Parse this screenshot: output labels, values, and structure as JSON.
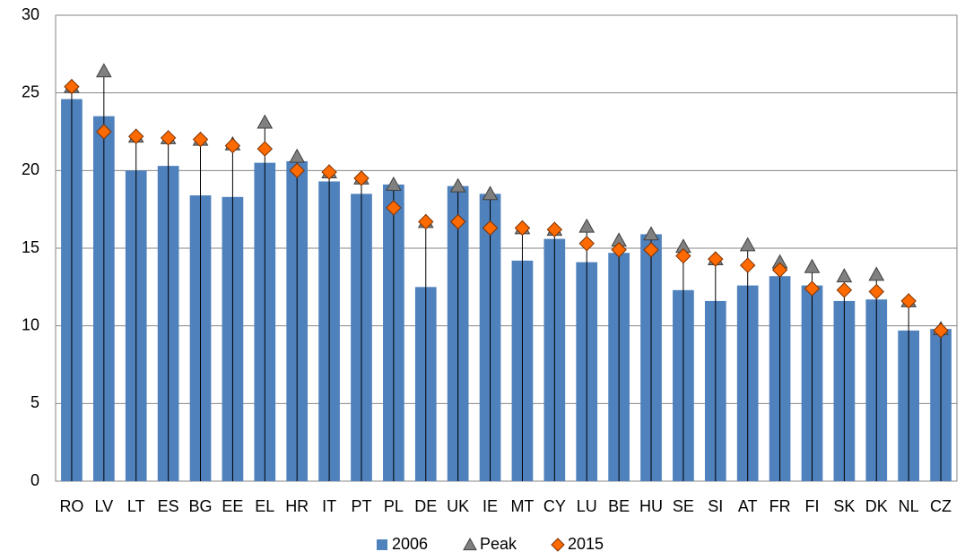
{
  "chart_data": {
    "type": "bar-markers",
    "categories": [
      "RO",
      "LV",
      "LT",
      "ES",
      "BG",
      "EE",
      "EL",
      "HR",
      "IT",
      "PT",
      "PL",
      "DE",
      "UK",
      "IE",
      "MT",
      "CY",
      "LU",
      "BE",
      "HU",
      "SE",
      "SI",
      "AT",
      "FR",
      "FI",
      "SK",
      "DK",
      "NL",
      "CZ"
    ],
    "series": [
      {
        "name": "2006",
        "color": "#4f81bd",
        "marker": "bar",
        "values": [
          24.6,
          23.5,
          20.0,
          20.3,
          18.4,
          18.3,
          20.5,
          20.6,
          19.3,
          18.5,
          19.1,
          12.5,
          19.0,
          18.5,
          14.2,
          15.6,
          14.1,
          14.7,
          15.9,
          12.3,
          11.6,
          12.6,
          13.2,
          12.6,
          11.6,
          11.7,
          9.7,
          9.8
        ]
      },
      {
        "name": "Peak",
        "color": "#808080",
        "marker": "triangle",
        "values": [
          25.4,
          26.4,
          22.2,
          22.1,
          22.0,
          21.7,
          23.1,
          20.9,
          19.9,
          19.5,
          19.1,
          16.7,
          19.0,
          18.5,
          16.3,
          16.2,
          16.4,
          15.5,
          15.9,
          15.1,
          14.3,
          15.2,
          14.1,
          13.8,
          13.2,
          13.3,
          11.6,
          9.8
        ]
      },
      {
        "name": "2015",
        "color": "#ff6a00",
        "marker": "diamond",
        "values": [
          25.4,
          22.5,
          22.2,
          22.1,
          22.0,
          21.6,
          21.4,
          20.0,
          19.9,
          19.5,
          17.6,
          16.7,
          16.7,
          16.3,
          16.3,
          16.2,
          15.3,
          14.9,
          14.9,
          14.5,
          14.3,
          13.9,
          13.6,
          12.4,
          12.3,
          12.2,
          11.6,
          9.7
        ]
      }
    ],
    "ylim": [
      0,
      30
    ],
    "yticks": [
      0,
      5,
      10,
      15,
      20,
      25,
      30
    ],
    "grid": true,
    "legend": "bottom"
  }
}
